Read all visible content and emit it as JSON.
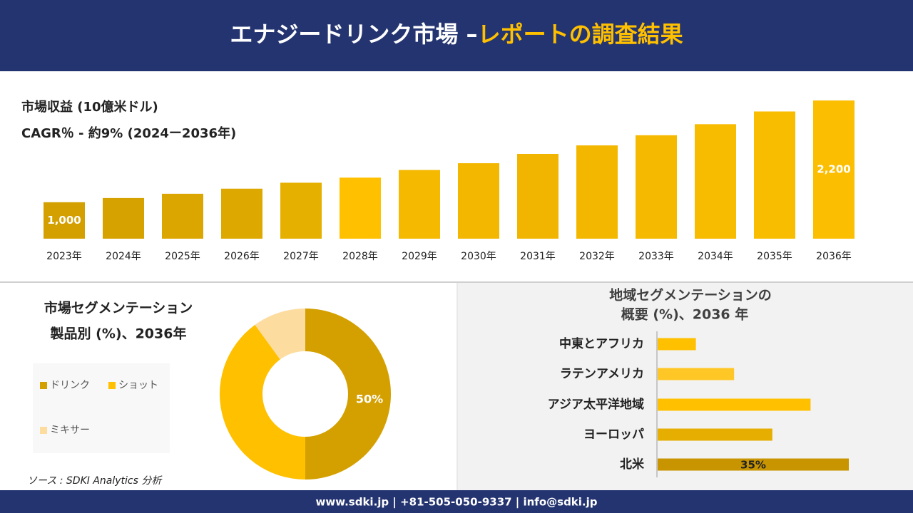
{
  "header": {
    "title_main": "エナジードリンク市場 –",
    "title_highlight": "レポートの調査結果"
  },
  "chart_data": [
    {
      "type": "bar",
      "title": "市場収益 (10億米ドル)",
      "subtitle": "CAGR％ - 約9% (2024ー2036年)",
      "categories": [
        "2023年",
        "2024年",
        "2025年",
        "2026年",
        "2027年",
        "2028年",
        "2029年",
        "2030年",
        "2031年",
        "2032年",
        "2033年",
        "2034年",
        "2035年",
        "2036年"
      ],
      "values": [
        1000,
        1050,
        1100,
        1160,
        1230,
        1290,
        1380,
        1460,
        1570,
        1670,
        1790,
        1920,
        2070,
        2200
      ],
      "value_labels": [
        "1,000",
        null,
        null,
        null,
        null,
        null,
        null,
        null,
        null,
        null,
        null,
        null,
        null,
        "2,200"
      ],
      "colors": [
        "#d4a000",
        "#d6a200",
        "#dba600",
        "#dda800",
        "#e6b000",
        "#ffc000",
        "#f5b900",
        "#f3b700",
        "#f1b500",
        "#f3b700",
        "#f5b900",
        "#f7bb00",
        "#f9bd00",
        "#fbbe00"
      ],
      "ylim": [
        570,
        2200
      ]
    },
    {
      "type": "pie",
      "donut": true,
      "title": "市場セグメンテーション",
      "subtitle": "製品別 (%)、2036年",
      "categories": [
        "ドリンク",
        "ショット",
        "ミキサー"
      ],
      "values": [
        50,
        40,
        10
      ],
      "value_labels": [
        "50%",
        null,
        null
      ],
      "colors": [
        "#d4a000",
        "#ffc000",
        "#fddca0"
      ]
    },
    {
      "type": "bar",
      "orientation": "horizontal",
      "title": "地域セグメンテーションの",
      "subtitle": "概要 (%)、2036 年",
      "categories": [
        "中東とアフリカ",
        "ラテンアメリカ",
        "アジア太平洋地域",
        "ヨーロッパ",
        "北米"
      ],
      "values": [
        7,
        14,
        28,
        21,
        35
      ],
      "value_labels": [
        null,
        null,
        null,
        null,
        "35%"
      ],
      "colors": [
        "#ffc000",
        "#ffc726",
        "#ffc000",
        "#e6ae00",
        "#c89400"
      ],
      "xlim": [
        0,
        35
      ]
    }
  ],
  "source": "ソース : SDKI Analytics 分析",
  "footer": "www.sdki.jp | +81-505-050-9337 | info@sdki.jp"
}
